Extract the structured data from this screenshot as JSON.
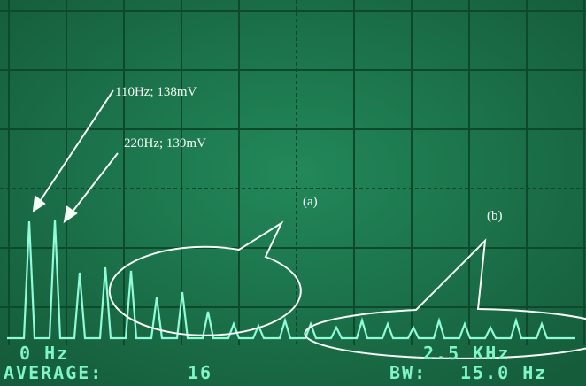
{
  "annotations": {
    "first_peak": "110Hz; 138mV",
    "second_peak": "220Hz; 139mV",
    "region_a": "(a)",
    "region_b": "(b)"
  },
  "display": {
    "start_freq": "0 Hz",
    "stop_freq": "2.5 KHz",
    "average_label": "AVERAGE:",
    "average_value": "16",
    "bw_label": "BW:",
    "bw_value": "15.0 Hz"
  }
}
